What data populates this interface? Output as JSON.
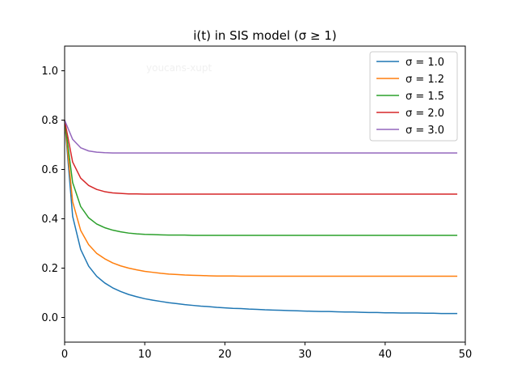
{
  "chart_data": {
    "type": "line",
    "title": "i(t) in SIS model (σ ≥ 1)",
    "watermark": "youcans-xupt",
    "xlabel": "",
    "ylabel": "",
    "xlim": [
      0,
      50
    ],
    "ylim": [
      -0.1,
      1.1
    ],
    "xticks": [
      0,
      10,
      20,
      30,
      40,
      50
    ],
    "yticks": [
      0.0,
      0.2,
      0.4,
      0.6,
      0.8,
      1.0
    ],
    "xtick_labels": [
      "0",
      "10",
      "20",
      "30",
      "40",
      "50"
    ],
    "ytick_labels": [
      "0.0",
      "0.2",
      "0.4",
      "0.6",
      "0.8",
      "1.0"
    ],
    "grid": false,
    "legend_position": "top-right",
    "x": [
      0,
      1,
      2,
      3,
      4,
      5,
      6,
      7,
      8,
      9,
      10,
      11,
      12,
      13,
      14,
      15,
      16,
      17,
      18,
      19,
      20,
      21,
      22,
      23,
      24,
      25,
      26,
      27,
      28,
      29,
      30,
      31,
      32,
      33,
      34,
      35,
      36,
      37,
      38,
      39,
      40,
      41,
      42,
      43,
      44,
      45,
      46,
      47,
      48,
      49
    ],
    "series": [
      {
        "name": "σ = 1.0",
        "color": "#1f77b4",
        "values": [
          0.8,
          0.41,
          0.276,
          0.208,
          0.167,
          0.14,
          0.12,
          0.105,
          0.093,
          0.084,
          0.076,
          0.07,
          0.065,
          0.06,
          0.056,
          0.052,
          0.049,
          0.046,
          0.044,
          0.041,
          0.039,
          0.037,
          0.036,
          0.034,
          0.033,
          0.031,
          0.03,
          0.029,
          0.028,
          0.027,
          0.026,
          0.025,
          0.024,
          0.024,
          0.023,
          0.022,
          0.022,
          0.021,
          0.02,
          0.02,
          0.019,
          0.019,
          0.018,
          0.018,
          0.018,
          0.017,
          0.017,
          0.016,
          0.016,
          0.016
        ]
      },
      {
        "name": "σ = 1.2",
        "color": "#ff7f0e",
        "values": [
          0.8,
          0.469,
          0.353,
          0.295,
          0.26,
          0.238,
          0.221,
          0.209,
          0.2,
          0.193,
          0.187,
          0.183,
          0.179,
          0.176,
          0.174,
          0.172,
          0.171,
          0.17,
          0.169,
          0.168,
          0.168,
          0.168,
          0.167,
          0.167,
          0.167,
          0.167,
          0.167,
          0.167,
          0.167,
          0.167,
          0.167,
          0.167,
          0.167,
          0.167,
          0.167,
          0.167,
          0.167,
          0.167,
          0.167,
          0.167,
          0.167,
          0.167,
          0.167,
          0.167,
          0.167,
          0.167,
          0.167,
          0.167,
          0.167,
          0.167
        ]
      },
      {
        "name": "σ = 1.5",
        "color": "#2ca02c",
        "values": [
          0.8,
          0.547,
          0.45,
          0.404,
          0.379,
          0.364,
          0.354,
          0.347,
          0.342,
          0.339,
          0.337,
          0.336,
          0.335,
          0.334,
          0.334,
          0.334,
          0.333,
          0.333,
          0.333,
          0.333,
          0.333,
          0.333,
          0.333,
          0.333,
          0.333,
          0.333,
          0.333,
          0.333,
          0.333,
          0.333,
          0.333,
          0.333,
          0.333,
          0.333,
          0.333,
          0.333,
          0.333,
          0.333,
          0.333,
          0.333,
          0.333,
          0.333,
          0.333,
          0.333,
          0.333,
          0.333,
          0.333,
          0.333,
          0.333,
          0.333
        ]
      },
      {
        "name": "σ = 2.0",
        "color": "#d62728",
        "values": [
          0.8,
          0.63,
          0.565,
          0.535,
          0.519,
          0.51,
          0.505,
          0.503,
          0.501,
          0.501,
          0.5,
          0.5,
          0.5,
          0.5,
          0.5,
          0.5,
          0.5,
          0.5,
          0.5,
          0.5,
          0.5,
          0.5,
          0.5,
          0.5,
          0.5,
          0.5,
          0.5,
          0.5,
          0.5,
          0.5,
          0.5,
          0.5,
          0.5,
          0.5,
          0.5,
          0.5,
          0.5,
          0.5,
          0.5,
          0.5,
          0.5,
          0.5,
          0.5,
          0.5,
          0.5,
          0.5,
          0.5,
          0.5,
          0.5,
          0.5
        ]
      },
      {
        "name": "σ = 3.0",
        "color": "#9467bd",
        "values": [
          0.8,
          0.722,
          0.688,
          0.675,
          0.67,
          0.668,
          0.667,
          0.667,
          0.667,
          0.667,
          0.667,
          0.667,
          0.667,
          0.667,
          0.667,
          0.667,
          0.667,
          0.667,
          0.667,
          0.667,
          0.667,
          0.667,
          0.667,
          0.667,
          0.667,
          0.667,
          0.667,
          0.667,
          0.667,
          0.667,
          0.667,
          0.667,
          0.667,
          0.667,
          0.667,
          0.667,
          0.667,
          0.667,
          0.667,
          0.667,
          0.667,
          0.667,
          0.667,
          0.667,
          0.667,
          0.667,
          0.667,
          0.667,
          0.667,
          0.667
        ]
      }
    ]
  }
}
